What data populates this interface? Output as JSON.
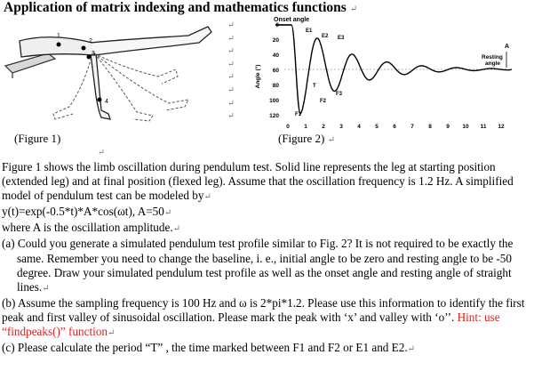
{
  "title": "Application of matrix indexing and mathematics functions",
  "return_mark": "↵",
  "figure1": {
    "caption": "(Figure 1)",
    "labels": [
      "1",
      "2",
      "3",
      "4"
    ]
  },
  "figure2": {
    "caption": "(Figure 2)",
    "onset_label": "Onset angle",
    "resting_label_1": "Resting",
    "resting_label_2": "angle",
    "ylabel": "Angle (°)",
    "yticks": [
      "0",
      "20",
      "40",
      "60",
      "80",
      "100",
      "120"
    ],
    "xticks": [
      "0",
      "1",
      "2",
      "3",
      "4",
      "5",
      "6",
      "7",
      "8",
      "9",
      "10",
      "11",
      "12"
    ],
    "peak_labels": [
      "E1",
      "E2",
      "E3"
    ],
    "valley_labels": [
      "F1",
      "F2",
      "F3"
    ],
    "T_label": "T",
    "A_label": "A"
  },
  "paragraphs": {
    "p1": "Figure 1 shows the limb oscillation during pendulum test. Solid line represents the leg at starting position (extended leg) and at final position (flexed leg). Assume that the oscillation frequency is 1.2 Hz. A simplified model of pendulum test can be modeled by",
    "p2": "y(t)=exp(-0.5*t)*A*cos(ωt), A=50",
    "p3": "where A is the oscillation amplitude.",
    "a": "(a) Could you generate a simulated pendulum test profile similar to Fig. 2? It is not required to be exactly the same. Remember you need to change the baseline, i. e., initial angle to be zero and resting angle to be -50 degree. Draw your simulated pendulum test profile as well as the onset angle and resting angle of straight lines.",
    "b_text": "(b) Assume the sampling frequency is 100 Hz and ω is 2*pi*1.2. Please use this information to identify the first peak and first valley of sinusoidal oscillation. Please mark the peak with ‘x’ and valley with ‘o’’. ",
    "b_hint": "Hint: use “findpeaks()” function",
    "c": "(c) Please calculate the period “T” , the time marked between F1 and F2 or E1 and E2."
  }
}
